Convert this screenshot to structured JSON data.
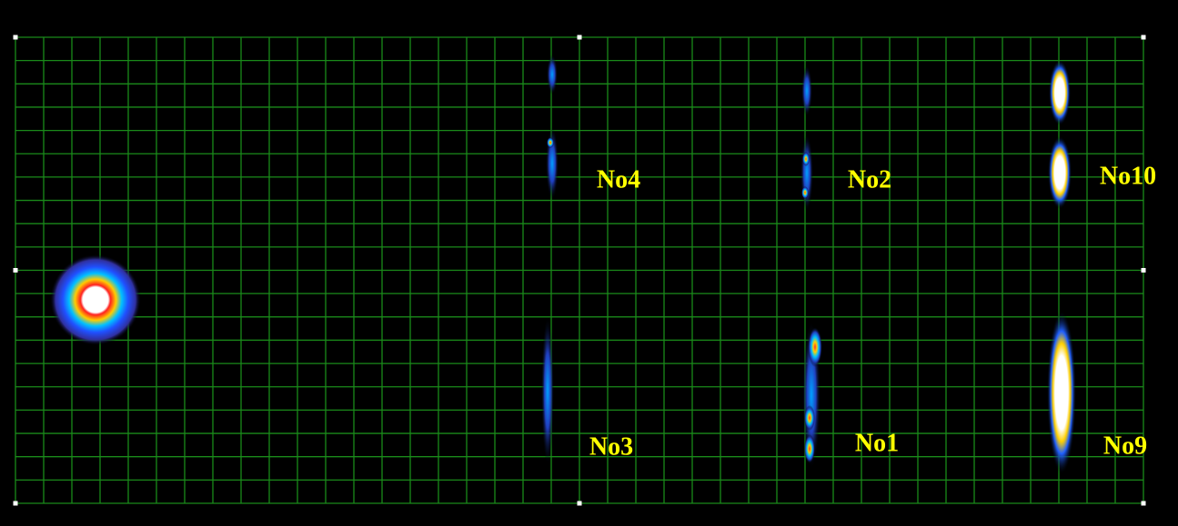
{
  "labels": [
    "No4",
    "No2",
    "No10",
    "No3",
    "No1",
    "No9"
  ]
}
